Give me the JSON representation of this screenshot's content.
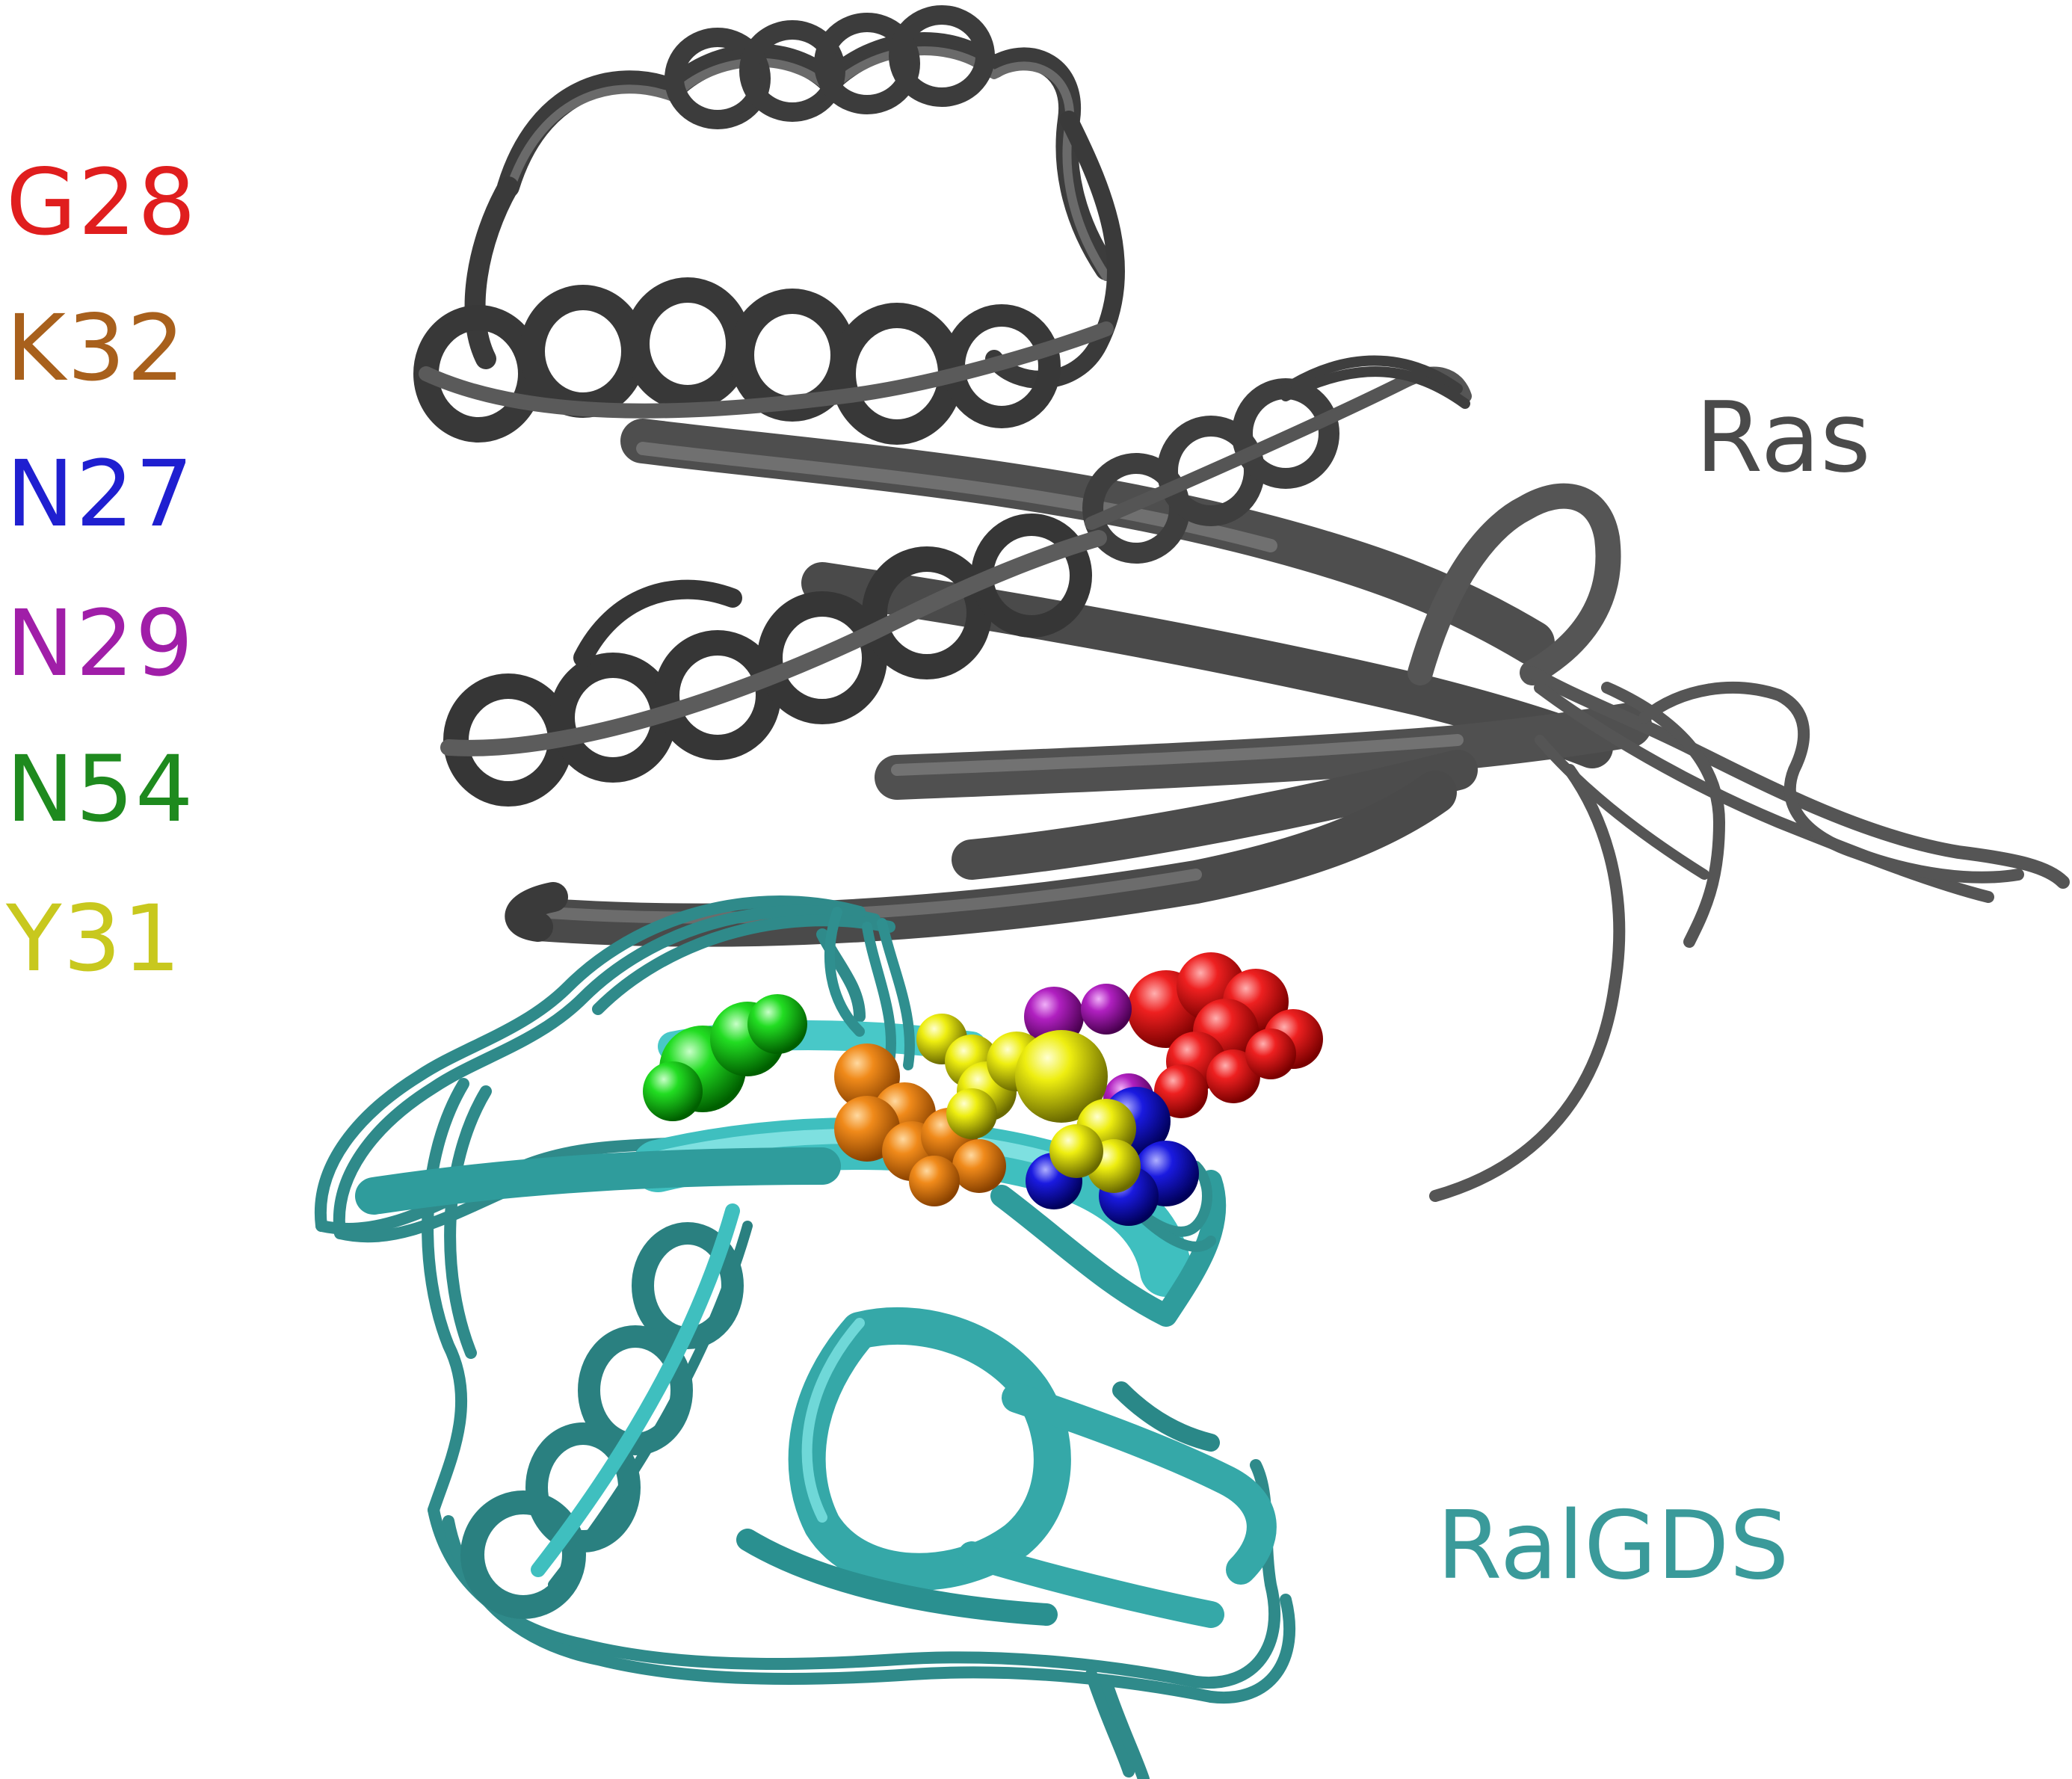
{
  "residues": [
    {
      "label": "G28",
      "color": "#e01e1e"
    },
    {
      "label": "K32",
      "color": "#a8601c"
    },
    {
      "label": "N27",
      "color": "#1f1fd0"
    },
    {
      "label": "N29",
      "color": "#a01ea8"
    },
    {
      "label": "N54",
      "color": "#1e8a1e"
    },
    {
      "label": "Y31",
      "color": "#c8c81e"
    }
  ],
  "chains": {
    "ras": {
      "label": "Ras",
      "color": "#4a4a4a"
    },
    "ralgds": {
      "label": "RalGDS",
      "color": "#3a9a9a"
    }
  },
  "sphere_colors": {
    "G28": "#e01515",
    "K32": "#f08a1a",
    "N27": "#1a1ae0",
    "N29": "#b020c0",
    "N54": "#22dd22",
    "Y31": "#eeee10"
  }
}
